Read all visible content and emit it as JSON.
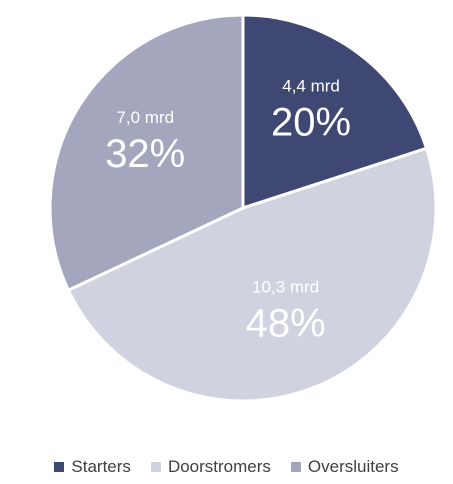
{
  "chart_data": {
    "type": "pie",
    "categories": [
      "Starters",
      "Doorstromers",
      "Oversluiters"
    ],
    "values": [
      20,
      48,
      32
    ],
    "amount_labels": [
      "4,4 mrd",
      "10,3 mrd",
      "7,0 mrd"
    ],
    "percent_labels": [
      "20%",
      "48%",
      "32%"
    ],
    "colors": [
      "#3f4873",
      "#d0d3df",
      "#a3a6bc"
    ],
    "start": "12 o'clock, clockwise",
    "legend": "bottom"
  }
}
